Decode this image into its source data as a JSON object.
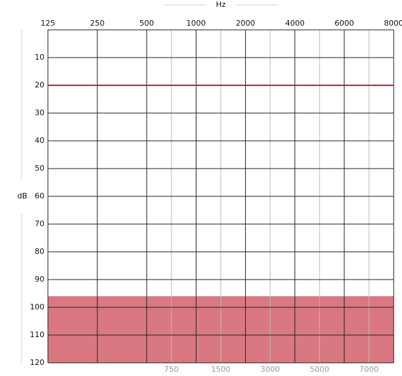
{
  "chart_data": {
    "type": "audiogram",
    "xlabel": "Hz",
    "ylabel": "dB",
    "xticks": [
      125,
      250,
      500,
      1000,
      2000,
      4000,
      6000,
      8000
    ],
    "minor_xticks": [
      750,
      1500,
      3000,
      5000,
      7000
    ],
    "ylim": [
      0,
      120
    ],
    "yticks": [
      10,
      20,
      30,
      40,
      50,
      60,
      70,
      80,
      90,
      100,
      110,
      120
    ],
    "reference_line": {
      "value": 20,
      "color": "#cc2229"
    },
    "shaded_band": {
      "from": 96,
      "to": 120,
      "color": "#d97880"
    }
  }
}
